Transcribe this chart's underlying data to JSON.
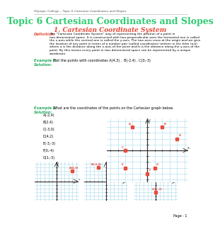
{
  "title": "Topic 6 Cartesian Coordinates and Slopes",
  "header": "Olympic College – Topic 6 Cartesian Coordinates and Slopes",
  "section1": "1. Cartesian Coordinate System",
  "definition_label": "Definition:",
  "definition_text": "The “Cartesian Coordinate System” way of representing the position of a point in\ntwo dimensional space. It is constructed with two perpendicular axes the horizontal one is called\nthe x-axis while the vertical one is called the y-axis. The two axes cross at the origin and we give\nthe location of any point in terms of a number pair (called coordinates) written in the form (a,b)\nwhere a is the distance along the x-axis of the point and b is the distance along the y-axis of the\npoint. By this means every point in two-dimensional space can be represented by a unique\ncoordinate.",
  "example1_label": "Example 1:",
  "example1_text": "Plot the points with coordinates A(4,3) ,  B(-2,4) , C(0,-3)",
  "solution_label": "Solution:",
  "example2_label": "Example 2:",
  "example2_text": "What are the coordinates of the points on the Cartesian graph below.",
  "solution2_label": "Solution:",
  "solution2_items": [
    "A(-2,4)",
    "B(2,4)",
    "C(-3,0)",
    "D(4,2)",
    "E(-3,-3)",
    "F(0,-4)",
    "G(1,-3)"
  ],
  "page_label": "Page : 1",
  "bg_color": "#ffffff",
  "title_color": "#2ecc71",
  "section_color": "#e74c3c",
  "example_color": "#27ae60",
  "solution_color": "#27ae60",
  "definition_label_color": "#e74c3c",
  "grid_color": "#a8d8ea",
  "axis_color": "#333333",
  "point_color": "#e74c3c",
  "text_color": "#000000",
  "header_color": "#555555"
}
